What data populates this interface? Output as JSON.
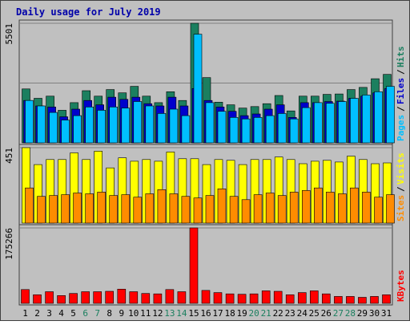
{
  "chart_data": {
    "type": "bar",
    "title": "Daily usage for July 2019",
    "categories": [
      "1",
      "2",
      "3",
      "4",
      "5",
      "6",
      "7",
      "8",
      "9",
      "10",
      "11",
      "12",
      "13",
      "14",
      "15",
      "16",
      "17",
      "18",
      "19",
      "20",
      "21",
      "22",
      "23",
      "24",
      "25",
      "26",
      "27",
      "28",
      "29",
      "30",
      "31"
    ],
    "weekend_days": [
      "6",
      "7",
      "13",
      "14",
      "20",
      "21",
      "27",
      "28"
    ],
    "panels": [
      {
        "id": "hits_files_pages",
        "max_label": "5501",
        "ylim": [
          0,
          5501
        ],
        "side_labels": [
          "Pages",
          "Files",
          "Hits"
        ],
        "series": [
          {
            "name": "Hits",
            "color": "#1b7f5f",
            "values": [
              2480,
              2050,
              2150,
              1500,
              1850,
              2400,
              2150,
              2450,
              2300,
              2600,
              2150,
              1850,
              2350,
              1950,
              5501,
              3000,
              1870,
              1750,
              1600,
              1670,
              1800,
              2180,
              1470,
              2150,
              2150,
              2230,
              2250,
              2450,
              2550,
              2950,
              3150
            ]
          },
          {
            "name": "Files",
            "color": "#0000cc",
            "values": [
              1950,
              1700,
              1650,
              1200,
              1550,
              1950,
              1750,
              2100,
              2000,
              2100,
              1800,
              1700,
              2100,
              1700,
              2500,
              1950,
              1650,
              1450,
              1250,
              1330,
              1550,
              1750,
              1170,
              1850,
              1850,
              1900,
              1920,
              2050,
              2150,
              2300,
              2500
            ]
          },
          {
            "name": "Pages",
            "color": "#00bfff",
            "values": [
              1950,
              1700,
              1400,
              1050,
              1250,
              1650,
              1500,
              1650,
              1600,
              1900,
              1700,
              1350,
              1550,
              1250,
              5000,
              1850,
              1450,
              1170,
              1100,
              1170,
              1250,
              1350,
              1100,
              1620,
              1850,
              1820,
              1900,
              2050,
              2200,
              2350,
              2600
            ]
          }
        ]
      },
      {
        "id": "visits_sites",
        "max_label": "451",
        "ylim": [
          0,
          451
        ],
        "side_labels": [
          "Sites",
          "Visits"
        ],
        "series": [
          {
            "name": "Visits",
            "color": "#ffff00",
            "values": [
              451,
              350,
              380,
              380,
              420,
              380,
              430,
              330,
              390,
              370,
              380,
              370,
              425,
              385,
              385,
              350,
              380,
              375,
              350,
              380,
              380,
              395,
              380,
              355,
              370,
              375,
              365,
              400,
              380,
              355,
              360
            ]
          },
          {
            "name": "Sites",
            "color": "#ff8c00",
            "values": [
              210,
              160,
              165,
              170,
              180,
              175,
              185,
              165,
              170,
              155,
              175,
              200,
              175,
              160,
              150,
              165,
              205,
              160,
              140,
              170,
              180,
              165,
              185,
              195,
              210,
              185,
              175,
              210,
              185,
              155,
              170
            ]
          }
        ]
      },
      {
        "id": "kbytes",
        "max_label": "175266",
        "ylim": [
          0,
          175266
        ],
        "side_labels": [
          "KBytes"
        ],
        "series": [
          {
            "name": "KBytes",
            "color": "#ff0000",
            "values": [
              32000,
              20000,
              27000,
              18000,
              23000,
              27000,
              27000,
              28000,
              33000,
              27000,
              23000,
              22000,
              32000,
              27000,
              175266,
              30000,
              25000,
              22000,
              21000,
              22000,
              29000,
              28000,
              20000,
              25000,
              29000,
              22000,
              16000,
              16000,
              14000,
              16000,
              20000
            ]
          }
        ]
      }
    ]
  }
}
